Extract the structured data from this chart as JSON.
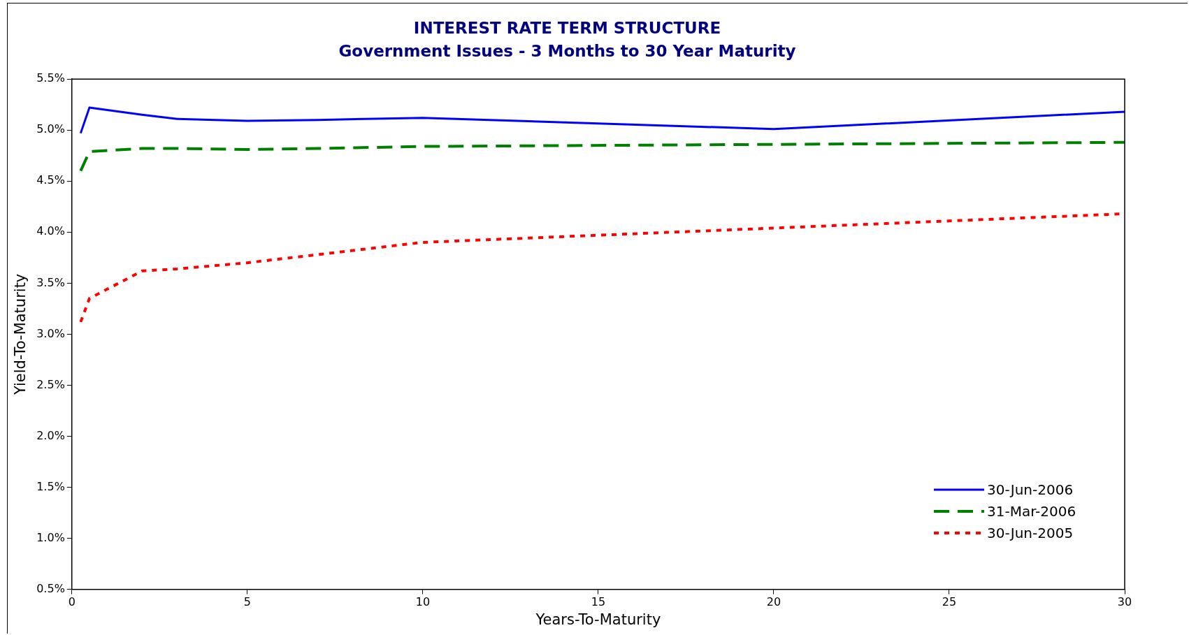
{
  "chart_data": {
    "type": "line",
    "title": "INTEREST RATE TERM STRUCTURE",
    "subtitle": "Government Issues - 3 Months to 30 Year Maturity",
    "xlabel": "Years-To-Maturity",
    "ylabel": "Yield-To-Maturity",
    "x": [
      0.25,
      0.5,
      2,
      3,
      5,
      7,
      10,
      20,
      30
    ],
    "series": [
      {
        "name": "30-Jun-2006",
        "color": "#0000ff",
        "line_style": "solid",
        "values": [
          4.97,
          5.22,
          5.15,
          5.11,
          5.09,
          5.1,
          5.12,
          5.01,
          5.18
        ]
      },
      {
        "name": "31-Mar-2006",
        "color": "#008000",
        "line_style": "dashed",
        "values": [
          4.6,
          4.79,
          4.82,
          4.82,
          4.81,
          4.82,
          4.84,
          4.86,
          4.88
        ]
      },
      {
        "name": "30-Jun-2005",
        "color": "#ff0000",
        "line_style": "dotted",
        "values": [
          3.12,
          3.35,
          3.62,
          3.64,
          3.7,
          3.78,
          3.9,
          4.04,
          4.18
        ]
      }
    ],
    "xlim": [
      0,
      30
    ],
    "xticks": [
      0,
      5,
      10,
      15,
      20,
      25,
      30
    ],
    "ylim": [
      0.5,
      5.5
    ],
    "yticks": [
      {
        "value": 0.5,
        "label": "0.5%"
      },
      {
        "value": 1,
        "label": "1.0%"
      },
      {
        "value": 1.5,
        "label": "1.5%"
      },
      {
        "value": 2,
        "label": "2.0%"
      },
      {
        "value": 2.5,
        "label": "2.5%"
      },
      {
        "value": 3,
        "label": "3.0%"
      },
      {
        "value": 3.5,
        "label": "3.5%"
      },
      {
        "value": 4,
        "label": "4.0%"
      },
      {
        "value": 4.5,
        "label": "4.5%"
      },
      {
        "value": 5,
        "label": "5.0%"
      },
      {
        "value": 5.5,
        "label": "5.5%"
      }
    ],
    "grid": false,
    "legend": "bottom right",
    "marker": "none"
  }
}
